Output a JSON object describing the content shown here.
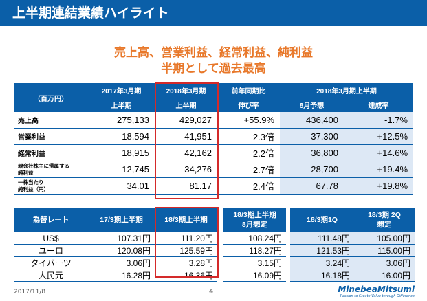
{
  "title": "上半期連結業績ハイライト",
  "headline1": "売上高、営業利益、経常利益、純利益",
  "headline2": "半期として過去最高",
  "main_table": {
    "unit_label": "（百万円）",
    "col_2017_top": "2017年3月期",
    "col_2017_bottom": "上半期",
    "col_2018_top": "2018年3月期",
    "col_2018_bottom": "上半期",
    "col_yoy_top": "前年同期比",
    "col_yoy_bottom": "伸び率",
    "col_group_top": "2018年3月期上半期",
    "col_forecast": "8月予想",
    "col_achieve": "達成率",
    "rows": [
      {
        "label": "売上高",
        "v2017": "275,133",
        "v2018": "429,027",
        "yoy": "+55.9%",
        "forecast": "436,400",
        "achieve": "-1.7%"
      },
      {
        "label": "営業利益",
        "v2017": "18,594",
        "v2018": "41,951",
        "yoy": "2.3倍",
        "forecast": "37,300",
        "achieve": "+12.5%"
      },
      {
        "label": "経常利益",
        "v2017": "18,915",
        "v2018": "42,162",
        "yoy": "2.2倍",
        "forecast": "36,800",
        "achieve": "+14.6%"
      },
      {
        "label_line1": "親会社株主に帰属する",
        "label_line2": "純利益",
        "v2017": "12,745",
        "v2018": "34,276",
        "yoy": "2.7倍",
        "forecast": "28,700",
        "achieve": "+19.4%"
      },
      {
        "label_line1": "一株当たり",
        "label_line2": "純利益（円）",
        "v2017": "34.01",
        "v2018": "81.17",
        "yoy": "2.4倍",
        "forecast": "67.78",
        "achieve": "+19.8%"
      }
    ]
  },
  "fx_table": {
    "col_label": "為替レート",
    "col_17": "17/3期上半期",
    "col_18": "18/3期上半期",
    "col_18plan_1": "18/3期上半期",
    "col_18plan_2": "8月想定",
    "col_q1": "18/3期1Q",
    "col_2q_1": "18/3期 2Q",
    "col_2q_2": "想定",
    "rows": [
      {
        "label": "US$",
        "v17": "107.31円",
        "v18": "111.20円",
        "plan": "108.24円",
        "q1": "111.48円",
        "q2": "105.00円"
      },
      {
        "label": "ユーロ",
        "v17": "120.08円",
        "v18": "125.59円",
        "plan": "118.27円",
        "q1": "121.53円",
        "q2": "115.00円"
      },
      {
        "label": "タイバーツ",
        "v17": "3.06円",
        "v18": "3.28円",
        "plan": "3.15円",
        "q1": "3.24円",
        "q2": "3.06円"
      },
      {
        "label": "人民元",
        "v17": "16.28円",
        "v18": "16.36円",
        "plan": "16.09円",
        "q1": "16.18円",
        "q2": "16.00円"
      }
    ]
  },
  "footer": {
    "date": "2017/11/8",
    "page": "4",
    "logo_name": "MinebeaMitsumi",
    "logo_tagline": "Passion to Create Value through Difference"
  },
  "colors": {
    "brand_blue": "#0b5fa8",
    "accent_orange": "#e8782a",
    "highlight_red": "#d42a2a"
  }
}
